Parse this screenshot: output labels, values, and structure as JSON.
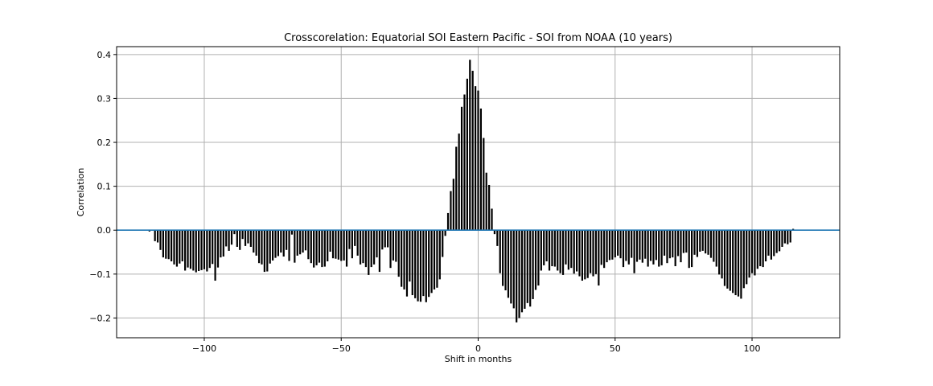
{
  "chart_data": {
    "type": "bar",
    "title": "Crosscorelation: Equatorial SOI Eastern Pacific - SOI from NOAA (10 years)",
    "xlabel": "Shift in months",
    "ylabel": "Correlation",
    "xlim": [
      -132,
      132
    ],
    "ylim": [
      -0.245,
      0.418
    ],
    "xticks": [
      -100,
      -50,
      0,
      50,
      100
    ],
    "xtick_labels": [
      "−100",
      "−50",
      "0",
      "50",
      "100"
    ],
    "yticks": [
      -0.2,
      -0.1,
      0.0,
      0.1,
      0.2,
      0.3,
      0.4
    ],
    "ytick_labels": [
      "−0.2",
      "−0.1",
      "0.0",
      "0.1",
      "0.2",
      "0.3",
      "0.4"
    ],
    "grid": true,
    "zero_line": 0,
    "bar_color": "#000000",
    "zero_line_color": "#1f77b4",
    "grid_color": "#b0b0b0",
    "x_start": -120,
    "x_step": 1,
    "values": [
      -0.003,
      -0.001,
      -0.025,
      -0.028,
      -0.045,
      -0.062,
      -0.065,
      -0.066,
      -0.071,
      -0.078,
      -0.083,
      -0.076,
      -0.071,
      -0.092,
      -0.085,
      -0.088,
      -0.092,
      -0.096,
      -0.093,
      -0.091,
      -0.089,
      -0.094,
      -0.086,
      -0.077,
      -0.115,
      -0.085,
      -0.062,
      -0.06,
      -0.037,
      -0.047,
      -0.033,
      -0.009,
      -0.038,
      -0.045,
      -0.02,
      -0.036,
      -0.03,
      -0.038,
      -0.051,
      -0.058,
      -0.075,
      -0.078,
      -0.095,
      -0.094,
      -0.076,
      -0.069,
      -0.063,
      -0.059,
      -0.051,
      -0.06,
      -0.045,
      -0.07,
      -0.01,
      -0.074,
      -0.058,
      -0.055,
      -0.051,
      -0.046,
      -0.066,
      -0.075,
      -0.085,
      -0.08,
      -0.074,
      -0.084,
      -0.083,
      -0.071,
      -0.049,
      -0.064,
      -0.065,
      -0.067,
      -0.07,
      -0.069,
      -0.083,
      -0.043,
      -0.064,
      -0.036,
      -0.058,
      -0.078,
      -0.075,
      -0.084,
      -0.102,
      -0.084,
      -0.078,
      -0.062,
      -0.095,
      -0.044,
      -0.039,
      -0.039,
      -0.086,
      -0.069,
      -0.072,
      -0.106,
      -0.129,
      -0.135,
      -0.151,
      -0.117,
      -0.148,
      -0.155,
      -0.162,
      -0.163,
      -0.15,
      -0.164,
      -0.152,
      -0.143,
      -0.135,
      -0.131,
      -0.112,
      -0.061,
      -0.013,
      0.039,
      0.089,
      0.117,
      0.19,
      0.22,
      0.281,
      0.309,
      0.345,
      0.388,
      0.363,
      0.328,
      0.318,
      0.277,
      0.21,
      0.131,
      0.103,
      0.049,
      -0.009,
      -0.036,
      -0.098,
      -0.127,
      -0.137,
      -0.154,
      -0.167,
      -0.178,
      -0.21,
      -0.2,
      -0.187,
      -0.179,
      -0.166,
      -0.174,
      -0.157,
      -0.136,
      -0.126,
      -0.092,
      -0.08,
      -0.071,
      -0.092,
      -0.082,
      -0.083,
      -0.092,
      -0.098,
      -0.102,
      -0.078,
      -0.09,
      -0.086,
      -0.099,
      -0.094,
      -0.105,
      -0.115,
      -0.112,
      -0.109,
      -0.098,
      -0.105,
      -0.1,
      -0.126,
      -0.079,
      -0.086,
      -0.073,
      -0.068,
      -0.067,
      -0.062,
      -0.058,
      -0.064,
      -0.084,
      -0.07,
      -0.078,
      -0.063,
      -0.098,
      -0.072,
      -0.067,
      -0.074,
      -0.065,
      -0.083,
      -0.07,
      -0.078,
      -0.068,
      -0.083,
      -0.08,
      -0.058,
      -0.075,
      -0.064,
      -0.062,
      -0.082,
      -0.059,
      -0.073,
      -0.052,
      -0.051,
      -0.086,
      -0.084,
      -0.056,
      -0.061,
      -0.049,
      -0.047,
      -0.053,
      -0.056,
      -0.063,
      -0.072,
      -0.083,
      -0.101,
      -0.11,
      -0.127,
      -0.133,
      -0.138,
      -0.143,
      -0.148,
      -0.151,
      -0.156,
      -0.132,
      -0.123,
      -0.108,
      -0.098,
      -0.103,
      -0.088,
      -0.082,
      -0.084,
      -0.071,
      -0.058,
      -0.067,
      -0.059,
      -0.052,
      -0.048,
      -0.038,
      -0.03,
      -0.032,
      -0.028,
      0.003
    ]
  }
}
